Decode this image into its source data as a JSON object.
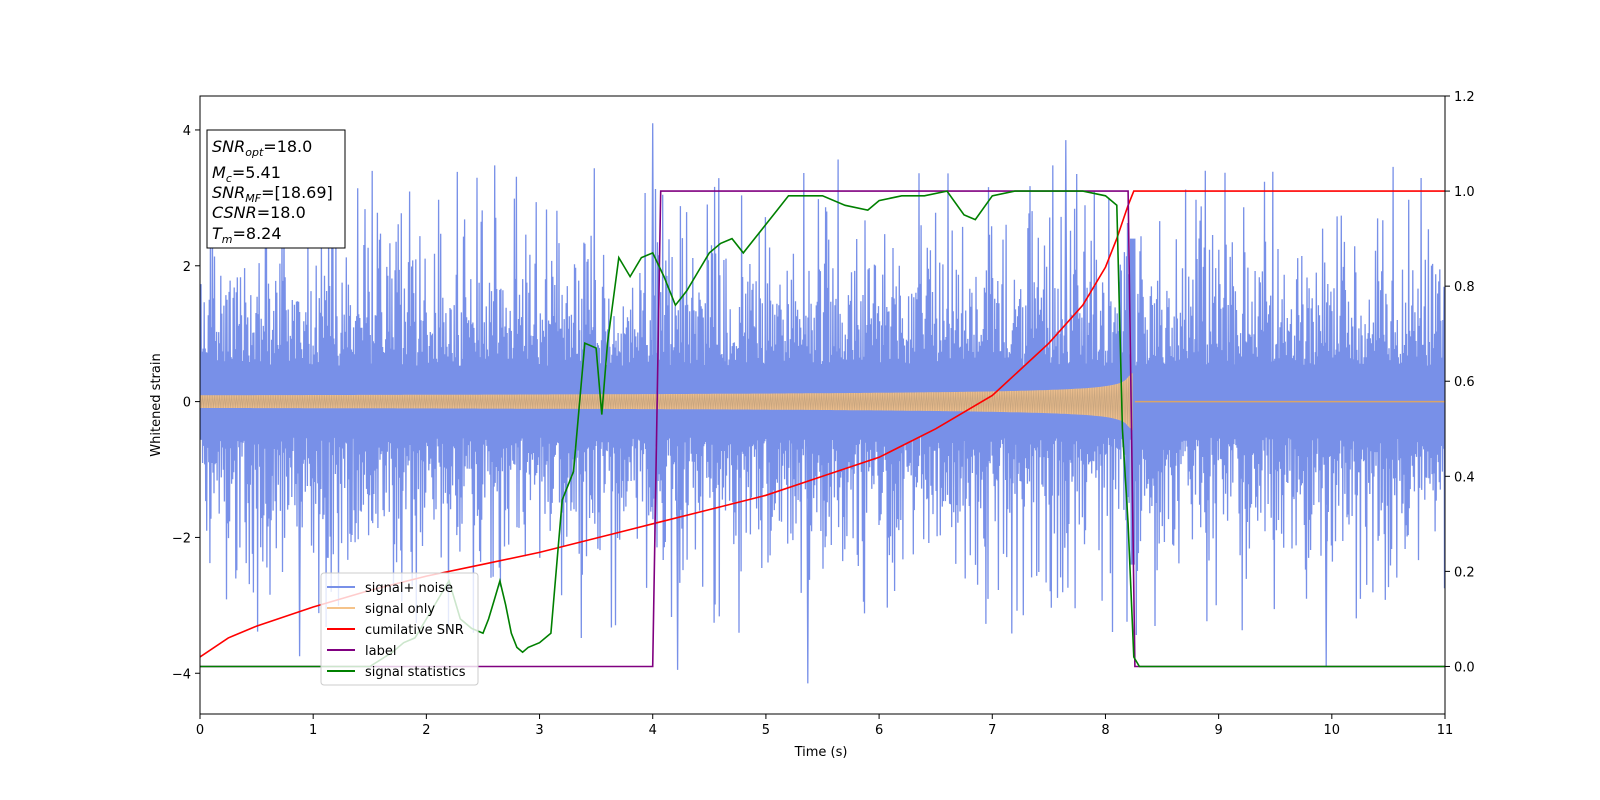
{
  "chart_data": {
    "type": "line",
    "xlabel": "Time (s)",
    "ylabel_left": "Whitened strain",
    "xlim": [
      0,
      11
    ],
    "ylim_left": [
      -4.6,
      4.5
    ],
    "ylim_right": [
      -0.1,
      1.2
    ],
    "x_ticks": [
      0,
      1,
      2,
      3,
      4,
      5,
      6,
      7,
      8,
      9,
      10,
      11
    ],
    "y_ticks_left": [
      -4,
      -2,
      0,
      2,
      4
    ],
    "y_ticks_right": [
      0.0,
      0.2,
      0.4,
      0.6,
      0.8,
      1.0,
      1.2
    ],
    "grid": false,
    "legend_position": "lower-left",
    "annotation": {
      "snr_opt": {
        "name": "SNR",
        "sub": "opt",
        "value": "=18.0"
      },
      "mc": {
        "name": "M",
        "sub": "c",
        "value": "=5.41"
      },
      "snr_mf": {
        "name": "SNR",
        "sub": "MF",
        "value": "=[18.69]"
      },
      "csnr": {
        "name": "CSNR",
        "sub": "",
        "value": "=18.0"
      },
      "tm": {
        "name": "T",
        "sub": "m",
        "value": "=8.24"
      }
    },
    "series": [
      {
        "name": "signal+ noise",
        "axis": "left",
        "color": "#7890e8",
        "description_kind": "noise",
        "start": 0,
        "end": 11,
        "typical_amplitude": 1.6,
        "peak_amplitude": 4.1,
        "peaks": [
          [
            4.0,
            4.1
          ],
          [
            5.37,
            -4.15
          ],
          [
            0.88,
            -3.75
          ],
          [
            9.95,
            -3.9
          ],
          [
            4.22,
            -3.95
          ],
          [
            7.65,
            3.85
          ]
        ]
      },
      {
        "name": "signal only",
        "axis": "left",
        "color": "#f5c38a",
        "description_kind": "chirp",
        "start": 0,
        "merger": 8.24,
        "start_amplitude": 0.12,
        "merger_amplitude": 1.1
      },
      {
        "name": "cumilative SNR",
        "axis": "right",
        "color": "#ff0000",
        "x": [
          0,
          0.25,
          0.5,
          1,
          1.5,
          2,
          2.5,
          3,
          3.5,
          4,
          4.5,
          5,
          5.5,
          6,
          6.5,
          7,
          7.5,
          7.8,
          8.0,
          8.1,
          8.2,
          8.25,
          9,
          10,
          11
        ],
        "y": [
          0.02,
          0.06,
          0.085,
          0.125,
          0.16,
          0.19,
          0.215,
          0.24,
          0.27,
          0.3,
          0.33,
          0.36,
          0.4,
          0.44,
          0.5,
          0.57,
          0.68,
          0.76,
          0.84,
          0.9,
          0.97,
          1.0,
          1.0,
          1.0,
          1.0
        ]
      },
      {
        "name": "label",
        "axis": "right",
        "color": "#800080",
        "x": [
          0,
          4.0,
          4.07,
          8.2,
          8.26,
          11
        ],
        "y": [
          0.0,
          0.0,
          1.0,
          1.0,
          0.0,
          0.0
        ]
      },
      {
        "name": "signal statistics",
        "axis": "right",
        "color": "#008000",
        "x": [
          0,
          1.5,
          1.7,
          1.8,
          1.9,
          2.0,
          2.1,
          2.2,
          2.3,
          2.4,
          2.5,
          2.55,
          2.6,
          2.65,
          2.7,
          2.75,
          2.8,
          2.85,
          2.9,
          3.0,
          3.1,
          3.2,
          3.3,
          3.4,
          3.5,
          3.55,
          3.6,
          3.7,
          3.8,
          3.9,
          4.0,
          4.1,
          4.2,
          4.3,
          4.4,
          4.5,
          4.6,
          4.7,
          4.8,
          4.9,
          5.0,
          5.1,
          5.2,
          5.3,
          5.5,
          5.7,
          5.9,
          6.0,
          6.2,
          6.4,
          6.6,
          6.75,
          6.85,
          7.0,
          7.2,
          7.5,
          7.8,
          8.0,
          8.1,
          8.15,
          8.2,
          8.25,
          8.3,
          9,
          10,
          11
        ],
        "y": [
          0.0,
          0.0,
          0.03,
          0.05,
          0.06,
          0.1,
          0.14,
          0.18,
          0.1,
          0.08,
          0.07,
          0.1,
          0.14,
          0.18,
          0.13,
          0.07,
          0.04,
          0.03,
          0.04,
          0.05,
          0.07,
          0.35,
          0.41,
          0.68,
          0.67,
          0.53,
          0.68,
          0.86,
          0.82,
          0.86,
          0.87,
          0.82,
          0.76,
          0.79,
          0.83,
          0.87,
          0.89,
          0.9,
          0.87,
          0.9,
          0.93,
          0.96,
          0.99,
          0.99,
          0.99,
          0.97,
          0.96,
          0.98,
          0.99,
          0.99,
          1.0,
          0.95,
          0.94,
          0.99,
          1.0,
          1.0,
          1.0,
          0.99,
          0.97,
          0.5,
          0.3,
          0.02,
          0.0,
          0.0,
          0.0,
          0.0
        ]
      }
    ]
  }
}
